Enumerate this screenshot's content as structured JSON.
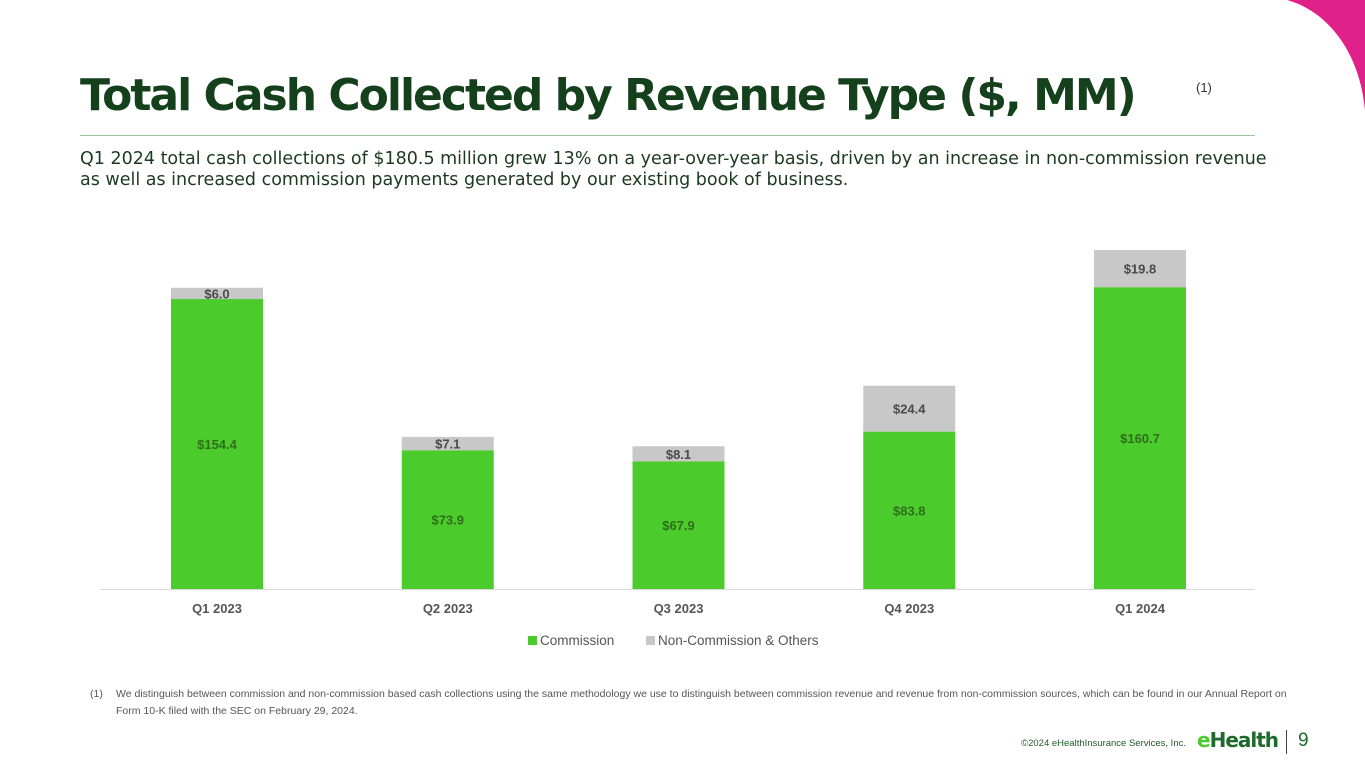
{
  "header": {
    "title": "Total Cash Collected by Revenue Type ($, MM)",
    "footnote_marker": "(1)"
  },
  "subtitle": "Q1 2024 total cash collections of $180.5 million grew 13% on a year-over-year basis, driven by an increase in non-commission revenue as well as increased commission payments generated by our existing book of business.",
  "chart_data": {
    "type": "bar",
    "stacked": true,
    "categories": [
      "Q1 2023",
      "Q2 2023",
      "Q3 2023",
      "Q4 2023",
      "Q1 2024"
    ],
    "series": [
      {
        "name": "Commission",
        "values": [
          154.4,
          73.9,
          67.9,
          83.8,
          160.7
        ],
        "labels": [
          "$154.4",
          "$73.9",
          "$67.9",
          "$83.8",
          "$160.7"
        ],
        "color": "#4ccb2c"
      },
      {
        "name": "Non-Commission & Others",
        "values": [
          6.0,
          7.1,
          8.1,
          24.4,
          19.8
        ],
        "labels": [
          "$6.0",
          "$7.1",
          "$8.1",
          "$24.4",
          "$19.8"
        ],
        "color": "#c8c8c8"
      }
    ],
    "ylim": [
      0,
      180.5
    ],
    "legend": "bottom",
    "grid": false
  },
  "footnote": {
    "marker": "(1)",
    "text": "We distinguish between commission and non-commission based cash collections using the same methodology we use to distinguish between commission revenue and revenue from non-commission sources, which can be found in our Annual Report on Form 10-K filed with the SEC on February 29, 2024."
  },
  "footer": {
    "copyright": "©2024 eHealthInsurance Services, Inc.",
    "logo": "eHealth",
    "page_number": "9"
  }
}
